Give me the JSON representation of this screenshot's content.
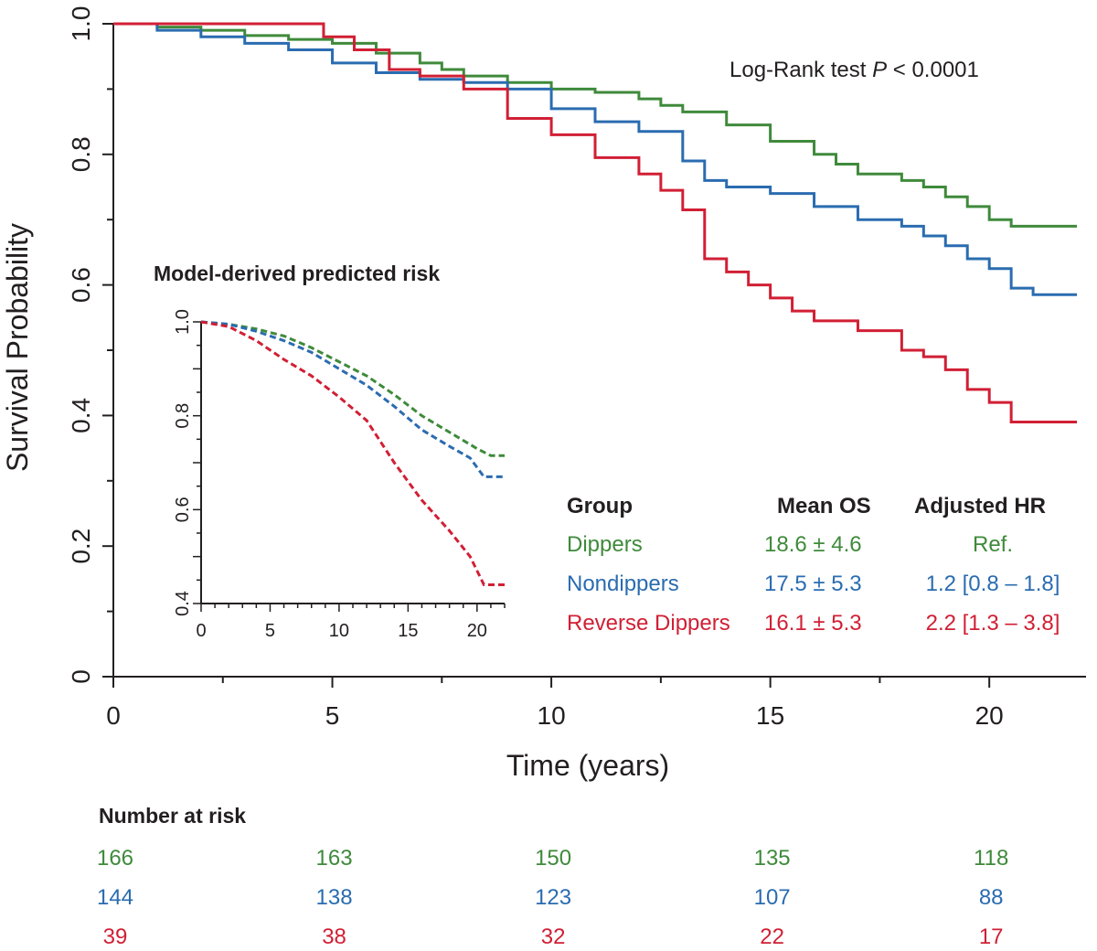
{
  "chart_data": [
    {
      "type": "line",
      "xlabel": "Time (years)",
      "ylabel": "Survival Probability",
      "xlim": [
        0,
        22
      ],
      "ylim": [
        0,
        1
      ],
      "x_ticks": [
        0,
        5,
        10,
        15,
        20
      ],
      "y_ticks": [
        0,
        0.2,
        0.4,
        0.6,
        0.8,
        1.0
      ],
      "y_tick_labels": [
        "0",
        "0.2",
        "0.4",
        "0.6",
        "0.8",
        "1.0"
      ],
      "annotation": {
        "prefix": "Log-Rank test ",
        "p_symbol": "P",
        "suffix": " < 0.0001"
      },
      "series": [
        {
          "name": "Dippers",
          "color": "#3f8a3b",
          "step": true,
          "points": [
            [
              0,
              1.0
            ],
            [
              1,
              0.995
            ],
            [
              2,
              0.99
            ],
            [
              3,
              0.982
            ],
            [
              4,
              0.976
            ],
            [
              5,
              0.97
            ],
            [
              6,
              0.955
            ],
            [
              7,
              0.94
            ],
            [
              7.5,
              0.93
            ],
            [
              8,
              0.92
            ],
            [
              9,
              0.91
            ],
            [
              10,
              0.9
            ],
            [
              11,
              0.895
            ],
            [
              12,
              0.885
            ],
            [
              12.5,
              0.875
            ],
            [
              13,
              0.865
            ],
            [
              14,
              0.845
            ],
            [
              15,
              0.82
            ],
            [
              16,
              0.8
            ],
            [
              16.5,
              0.785
            ],
            [
              17,
              0.77
            ],
            [
              18,
              0.76
            ],
            [
              18.5,
              0.75
            ],
            [
              19,
              0.735
            ],
            [
              19.5,
              0.72
            ],
            [
              20,
              0.7
            ],
            [
              20.5,
              0.69
            ],
            [
              22,
              0.69
            ]
          ]
        },
        {
          "name": "Nondippers",
          "color": "#2a6cb0",
          "step": true,
          "points": [
            [
              0,
              1.0
            ],
            [
              1,
              0.99
            ],
            [
              2,
              0.98
            ],
            [
              3,
              0.97
            ],
            [
              4,
              0.96
            ],
            [
              5,
              0.94
            ],
            [
              6,
              0.925
            ],
            [
              7,
              0.915
            ],
            [
              8,
              0.91
            ],
            [
              9,
              0.9
            ],
            [
              10,
              0.87
            ],
            [
              11,
              0.85
            ],
            [
              12,
              0.835
            ],
            [
              13,
              0.79
            ],
            [
              13.5,
              0.76
            ],
            [
              14,
              0.75
            ],
            [
              15,
              0.74
            ],
            [
              16,
              0.72
            ],
            [
              17,
              0.7
            ],
            [
              18,
              0.69
            ],
            [
              18.5,
              0.675
            ],
            [
              19,
              0.66
            ],
            [
              19.5,
              0.64
            ],
            [
              20,
              0.625
            ],
            [
              20.5,
              0.595
            ],
            [
              21,
              0.585
            ],
            [
              22,
              0.585
            ]
          ]
        },
        {
          "name": "Reverse Dippers",
          "color": "#d11f34",
          "step": true,
          "points": [
            [
              0,
              1.0
            ],
            [
              4.8,
              0.98
            ],
            [
              5.5,
              0.96
            ],
            [
              6.3,
              0.93
            ],
            [
              7,
              0.92
            ],
            [
              8,
              0.9
            ],
            [
              9,
              0.855
            ],
            [
              10,
              0.83
            ],
            [
              11,
              0.795
            ],
            [
              12,
              0.77
            ],
            [
              12.5,
              0.745
            ],
            [
              13,
              0.715
            ],
            [
              13.5,
              0.64
            ],
            [
              14,
              0.62
            ],
            [
              14.5,
              0.6
            ],
            [
              15,
              0.58
            ],
            [
              15.5,
              0.56
            ],
            [
              16,
              0.545
            ],
            [
              17,
              0.53
            ],
            [
              18,
              0.5
            ],
            [
              18.5,
              0.49
            ],
            [
              19,
              0.47
            ],
            [
              19.5,
              0.44
            ],
            [
              20,
              0.42
            ],
            [
              20.5,
              0.39
            ],
            [
              22,
              0.39
            ]
          ]
        }
      ],
      "legend_table": {
        "headers": [
          "Group",
          "Mean OS",
          "Adjusted HR"
        ],
        "rows": [
          {
            "group": "Dippers",
            "mean_os": "18.6 ± 4.6",
            "hr": "Ref.",
            "color": "#3f8a3b"
          },
          {
            "group": "Nondippers",
            "mean_os": "17.5 ± 5.3",
            "hr": "1.2 [0.8 – 1.8]",
            "color": "#2a6cb0"
          },
          {
            "group": "Reverse Dippers",
            "mean_os": "16.1 ± 5.3",
            "hr": "2.2 [1.3 – 3.8]",
            "color": "#d11f34"
          }
        ]
      }
    },
    {
      "type": "line",
      "title": "Model-derived predicted risk",
      "xlim": [
        0,
        22
      ],
      "ylim": [
        0.4,
        1.0
      ],
      "x_ticks": [
        0,
        5,
        10,
        15,
        20
      ],
      "y_ticks": [
        0.4,
        0.6,
        0.8,
        1.0
      ],
      "y_tick_labels": [
        "0.4",
        "0.6",
        "0.8",
        "1.0"
      ],
      "line_style": "dashed",
      "series": [
        {
          "name": "Dippers",
          "color": "#3f8a3b",
          "points": [
            [
              0,
              1.0
            ],
            [
              2,
              0.995
            ],
            [
              4,
              0.985
            ],
            [
              6,
              0.97
            ],
            [
              8,
              0.945
            ],
            [
              10,
              0.915
            ],
            [
              12,
              0.885
            ],
            [
              14,
              0.845
            ],
            [
              16,
              0.8
            ],
            [
              18,
              0.765
            ],
            [
              20,
              0.73
            ],
            [
              21,
              0.715
            ],
            [
              22,
              0.715
            ]
          ]
        },
        {
          "name": "Nondippers",
          "color": "#2a6cb0",
          "points": [
            [
              0,
              1.0
            ],
            [
              2,
              0.995
            ],
            [
              4,
              0.98
            ],
            [
              6,
              0.96
            ],
            [
              8,
              0.935
            ],
            [
              10,
              0.9
            ],
            [
              12,
              0.865
            ],
            [
              14,
              0.82
            ],
            [
              16,
              0.77
            ],
            [
              18,
              0.735
            ],
            [
              19.5,
              0.71
            ],
            [
              20.5,
              0.67
            ],
            [
              22,
              0.67
            ]
          ]
        },
        {
          "name": "Reverse Dippers",
          "color": "#d11f34",
          "points": [
            [
              0,
              1.0
            ],
            [
              2,
              0.99
            ],
            [
              4,
              0.96
            ],
            [
              6,
              0.92
            ],
            [
              8,
              0.885
            ],
            [
              10,
              0.84
            ],
            [
              12,
              0.79
            ],
            [
              14,
              0.7
            ],
            [
              16,
              0.62
            ],
            [
              18,
              0.555
            ],
            [
              19.5,
              0.5
            ],
            [
              20.5,
              0.44
            ],
            [
              22,
              0.44
            ]
          ]
        }
      ]
    }
  ],
  "number_at_risk": {
    "title": "Number at risk",
    "rows": [
      {
        "color": "#3f8a3b",
        "values": [
          "166",
          "163",
          "150",
          "135",
          "118"
        ]
      },
      {
        "color": "#2a6cb0",
        "values": [
          "144",
          "138",
          "123",
          "107",
          "88"
        ]
      },
      {
        "color": "#d11f34",
        "values": [
          "39",
          "38",
          "32",
          "22",
          "17"
        ]
      }
    ]
  }
}
